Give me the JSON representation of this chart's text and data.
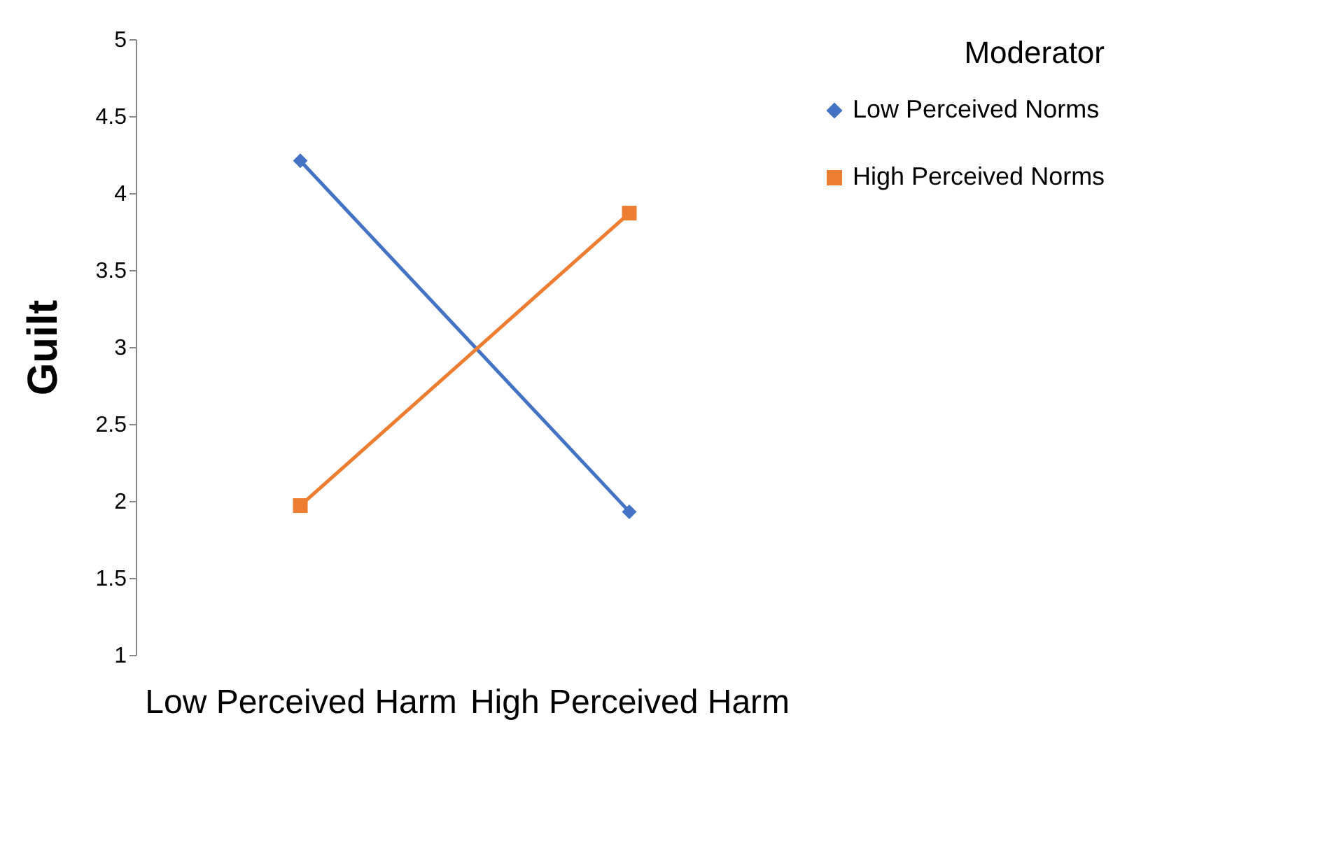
{
  "chart_data": {
    "type": "line",
    "ylabel": "Guilt",
    "legend_title": "Moderator",
    "categories": [
      "Low Perceived Harm",
      "High Perceived Harm"
    ],
    "series": [
      {
        "name": "Low Perceived Norms",
        "color": "#4472c4",
        "marker": "diamond",
        "values": [
          4.21,
          1.93
        ]
      },
      {
        "name": "High Perceived Norms",
        "color": "#ed7d31",
        "marker": "square",
        "values": [
          1.97,
          3.87
        ]
      }
    ],
    "ylim": [
      1,
      5
    ],
    "yticks": [
      1,
      1.5,
      2,
      2.5,
      3,
      3.5,
      4,
      4.5,
      5
    ],
    "grid": false,
    "legend": "right",
    "line_style": "solid"
  }
}
